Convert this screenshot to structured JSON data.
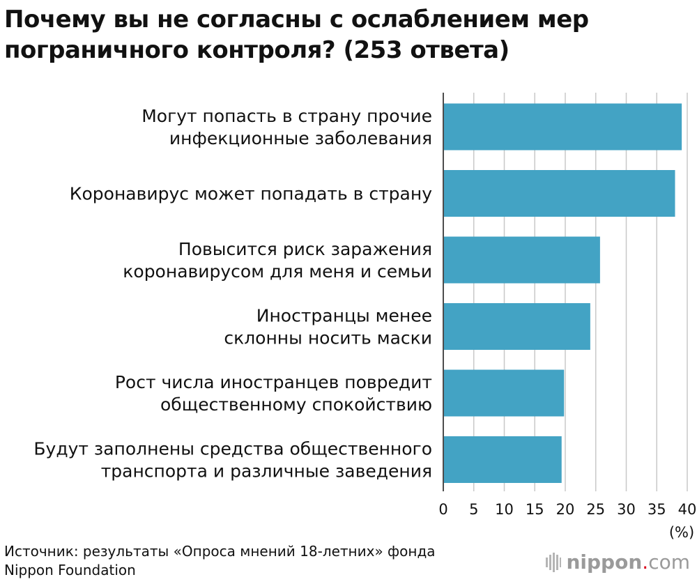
{
  "title_lines": [
    "Почему вы не согласны с ослаблением мер",
    "пограничного контроля? (253 ответа)"
  ],
  "chart_data": {
    "type": "bar",
    "orientation": "horizontal",
    "categories": [
      [
        "Могут попасть в страну прочие",
        "инфекционные заболевания"
      ],
      [
        "Коронавирус может попадать в страну"
      ],
      [
        "Повысится риск заражения",
        "коронавирусом для меня и семьи"
      ],
      [
        "Иностранцы менее",
        "склонны носить маски"
      ],
      [
        "Рост числа иностранцев повредит",
        "общественному спокойствию"
      ],
      [
        "Будут заполнены средства общественного",
        "транспорта и различные заведения"
      ]
    ],
    "values": [
      39.1,
      38.0,
      25.7,
      24.1,
      19.8,
      19.4
    ],
    "xlim": [
      0,
      40
    ],
    "xticks": [
      0,
      5,
      10,
      15,
      20,
      25,
      30,
      35,
      40
    ],
    "x_unit": "(%)",
    "grid": true,
    "bar_color": "#43a3c4",
    "grid_color": "#c8c8c8",
    "axis_color": "#111111"
  },
  "source_lines": [
    "Источник: результаты «Опроса мнений 18-летних» фонда",
    "Nippon Foundation"
  ],
  "logo": {
    "icon": "nippon-logo-icon",
    "brand": "nippon",
    "dot": ".",
    "tld": "com"
  }
}
